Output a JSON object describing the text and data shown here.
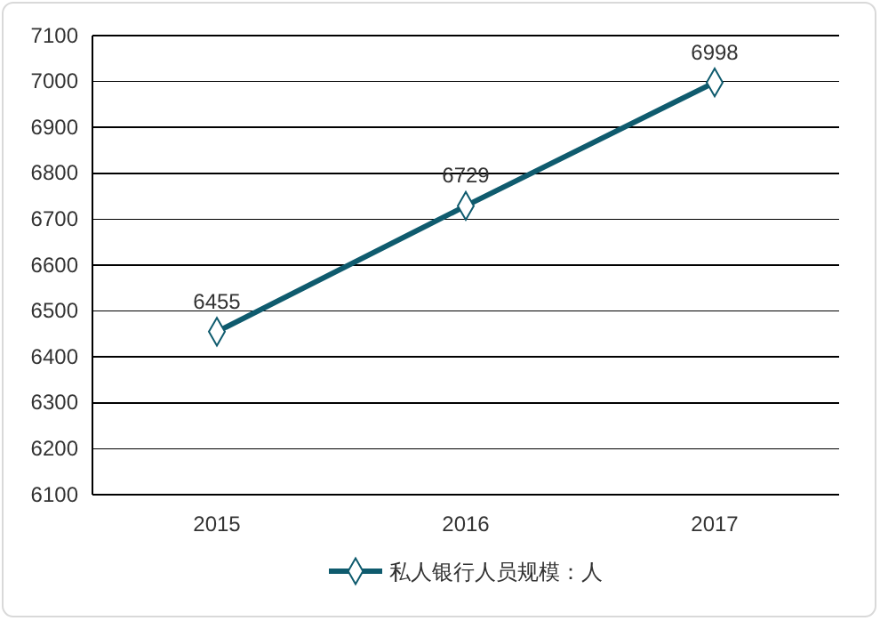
{
  "chart_data": {
    "type": "line",
    "categories": [
      "2015",
      "2016",
      "2017"
    ],
    "series": [
      {
        "name": "私人银行人员规模：人",
        "color": "#0f5b6e",
        "values": [
          6455,
          6729,
          6998
        ]
      }
    ],
    "ylim": [
      6100,
      7100
    ],
    "yticks": [
      6100,
      6200,
      6300,
      6400,
      6500,
      6600,
      6700,
      6800,
      6900,
      7000,
      7100
    ],
    "grid": "y",
    "legend": "bottom",
    "marker": "diamond",
    "line_style": "solid",
    "data_labels": true
  }
}
